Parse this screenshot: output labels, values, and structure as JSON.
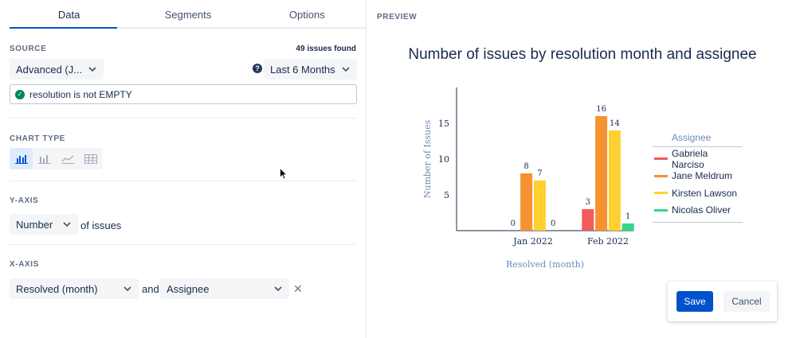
{
  "tabs": [
    {
      "label": "Data"
    },
    {
      "label": "Segments"
    },
    {
      "label": "Options"
    }
  ],
  "source": {
    "label": "SOURCE",
    "issues_found": "49 issues found",
    "query_select": "Advanced (J...",
    "date_range": "Last 6 Months",
    "jql": "resolution is not EMPTY"
  },
  "chart_type": {
    "label": "CHART TYPE",
    "options": [
      "bar-chart",
      "stacked-bar-chart",
      "line-chart",
      "table"
    ],
    "selected": "bar-chart"
  },
  "y_axis": {
    "label": "Y-AXIS",
    "measure": "Number",
    "suffix": "of issues"
  },
  "x_axis": {
    "label": "X-AXIS",
    "field": "Resolved (month)",
    "conjunction": "and",
    "group_by": "Assignee"
  },
  "preview": {
    "label": "PREVIEW",
    "legend_title": "Assignee"
  },
  "chart_data": {
    "type": "bar",
    "title": "Number of issues by resolution month and assignee",
    "xlabel": "Resolved (month)",
    "ylabel": "Number of Issues",
    "ylim": [
      0,
      20
    ],
    "yticks": [
      5,
      10,
      15
    ],
    "categories": [
      "Jan 2022",
      "Feb 2022"
    ],
    "series": [
      {
        "name": "Gabriela Narciso",
        "color": "#f15b5b",
        "values": [
          0,
          3
        ]
      },
      {
        "name": "Jane Meldrum",
        "color": "#f79233",
        "values": [
          8,
          16
        ]
      },
      {
        "name": "Kirsten Lawson",
        "color": "#ffd02f",
        "values": [
          7,
          14
        ]
      },
      {
        "name": "Nicolas Oliver",
        "color": "#36d68a",
        "values": [
          0,
          1
        ]
      }
    ]
  },
  "actions": {
    "save": "Save",
    "cancel": "Cancel"
  }
}
